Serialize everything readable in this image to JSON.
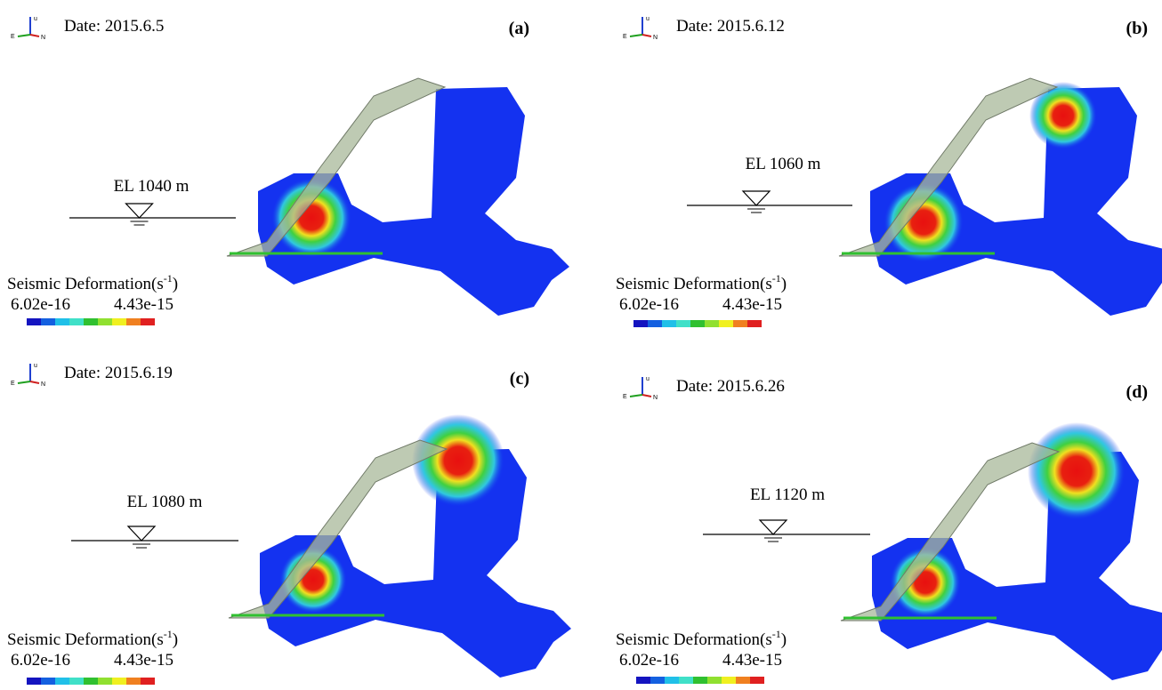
{
  "panels": [
    {
      "label": "(a)",
      "date": "Date: 2015.6.5",
      "elevation": "EL 1040 m",
      "legend": {
        "title": "Seismic Deformation(s",
        "exponent": "-1",
        "close": ")",
        "min": "6.02e-16",
        "max": "4.43e-15"
      },
      "axes": {
        "up": "u",
        "east": "E",
        "north": "N"
      }
    },
    {
      "label": "(b)",
      "date": "Date: 2015.6.12",
      "elevation": "EL 1060 m",
      "legend": {
        "title": "Seismic Deformation(s",
        "exponent": "-1",
        "close": ")",
        "min": "6.02e-16",
        "max": "4.43e-15"
      },
      "axes": {
        "up": "u",
        "east": "E",
        "north": "N"
      }
    },
    {
      "label": "(c)",
      "date": "Date: 2015.6.19",
      "elevation": "EL 1080 m",
      "legend": {
        "title": "Seismic Deformation(s",
        "exponent": "-1",
        "close": ")",
        "min": "6.02e-16",
        "max": "4.43e-15"
      },
      "axes": {
        "up": "u",
        "east": "E",
        "north": "N"
      }
    },
    {
      "label": "(d)",
      "date": "Date: 2015.6.26",
      "elevation": "EL 1120 m",
      "legend": {
        "title": "Seismic Deformation(s",
        "exponent": "-1",
        "close": ")",
        "min": "6.02e-16",
        "max": "4.43e-15"
      },
      "axes": {
        "up": "u",
        "east": "E",
        "north": "N"
      }
    }
  ]
}
